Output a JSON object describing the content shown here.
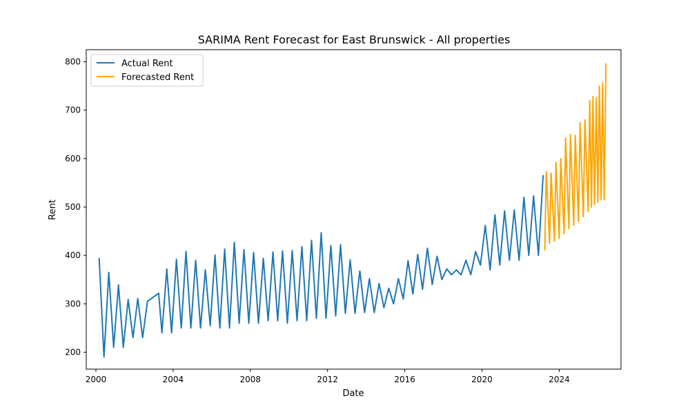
{
  "chart_data": {
    "type": "line",
    "title": "SARIMA Rent Forecast for East Brunswick - All properties",
    "xlabel": "Date",
    "ylabel": "Rent",
    "xlim": [
      1999.5,
      2027.2
    ],
    "ylim": [
      165,
      825
    ],
    "x_ticks": [
      2000,
      2004,
      2008,
      2012,
      2016,
      2020,
      2024
    ],
    "y_ticks": [
      200,
      300,
      400,
      500,
      600,
      700,
      800
    ],
    "grid": false,
    "legend_position": "upper-left",
    "series": [
      {
        "name": "Actual Rent",
        "color": "#1f77b4",
        "points": [
          [
            2000.17,
            395
          ],
          [
            2000.42,
            190
          ],
          [
            2000.67,
            365
          ],
          [
            2000.92,
            210
          ],
          [
            2001.17,
            339
          ],
          [
            2001.42,
            210
          ],
          [
            2001.67,
            309
          ],
          [
            2001.92,
            230
          ],
          [
            2002.17,
            311
          ],
          [
            2002.42,
            230
          ],
          [
            2002.67,
            305
          ],
          [
            2003.25,
            322
          ],
          [
            2003.42,
            240
          ],
          [
            2003.67,
            372
          ],
          [
            2003.92,
            240
          ],
          [
            2004.17,
            392
          ],
          [
            2004.42,
            250
          ],
          [
            2004.67,
            408
          ],
          [
            2004.92,
            250
          ],
          [
            2005.17,
            390
          ],
          [
            2005.42,
            250
          ],
          [
            2005.67,
            370
          ],
          [
            2005.92,
            255
          ],
          [
            2006.17,
            401
          ],
          [
            2006.42,
            250
          ],
          [
            2006.67,
            413
          ],
          [
            2006.92,
            250
          ],
          [
            2007.17,
            427
          ],
          [
            2007.42,
            260
          ],
          [
            2007.67,
            412
          ],
          [
            2007.92,
            260
          ],
          [
            2008.17,
            406
          ],
          [
            2008.42,
            260
          ],
          [
            2008.67,
            394
          ],
          [
            2008.92,
            265
          ],
          [
            2009.17,
            407
          ],
          [
            2009.42,
            265
          ],
          [
            2009.67,
            409
          ],
          [
            2009.92,
            260
          ],
          [
            2010.17,
            410
          ],
          [
            2010.42,
            265
          ],
          [
            2010.67,
            418
          ],
          [
            2010.92,
            265
          ],
          [
            2011.17,
            431
          ],
          [
            2011.42,
            270
          ],
          [
            2011.67,
            447
          ],
          [
            2011.92,
            270
          ],
          [
            2012.17,
            420
          ],
          [
            2012.42,
            275
          ],
          [
            2012.67,
            422
          ],
          [
            2012.92,
            280
          ],
          [
            2013.17,
            391
          ],
          [
            2013.42,
            280
          ],
          [
            2013.67,
            368
          ],
          [
            2013.92,
            282
          ],
          [
            2014.17,
            352
          ],
          [
            2014.42,
            282
          ],
          [
            2014.67,
            342
          ],
          [
            2014.92,
            292
          ],
          [
            2015.17,
            332
          ],
          [
            2015.42,
            300
          ],
          [
            2015.67,
            352
          ],
          [
            2015.92,
            310
          ],
          [
            2016.17,
            389
          ],
          [
            2016.42,
            320
          ],
          [
            2016.67,
            402
          ],
          [
            2016.92,
            330
          ],
          [
            2017.17,
            415
          ],
          [
            2017.42,
            340
          ],
          [
            2017.67,
            398
          ],
          [
            2017.92,
            350
          ],
          [
            2018.17,
            372
          ],
          [
            2018.42,
            360
          ],
          [
            2018.67,
            370
          ],
          [
            2018.92,
            360
          ],
          [
            2019.17,
            390
          ],
          [
            2019.42,
            360
          ],
          [
            2019.67,
            408
          ],
          [
            2019.92,
            380
          ],
          [
            2020.17,
            462
          ],
          [
            2020.42,
            370
          ],
          [
            2020.67,
            484
          ],
          [
            2020.92,
            380
          ],
          [
            2021.17,
            492
          ],
          [
            2021.42,
            390
          ],
          [
            2021.67,
            494
          ],
          [
            2021.92,
            390
          ],
          [
            2022.17,
            520
          ],
          [
            2022.42,
            400
          ],
          [
            2022.67,
            523
          ],
          [
            2022.92,
            400
          ],
          [
            2023.17,
            566
          ]
        ]
      },
      {
        "name": "Forecasted Rent",
        "color": "#ffa500",
        "points": [
          [
            2023.25,
            410
          ],
          [
            2023.33,
            573
          ],
          [
            2023.5,
            425
          ],
          [
            2023.58,
            570
          ],
          [
            2023.75,
            430
          ],
          [
            2023.83,
            592
          ],
          [
            2024.0,
            435
          ],
          [
            2024.08,
            600
          ],
          [
            2024.25,
            445
          ],
          [
            2024.33,
            642
          ],
          [
            2024.5,
            455
          ],
          [
            2024.58,
            650
          ],
          [
            2024.75,
            462
          ],
          [
            2024.83,
            648
          ],
          [
            2025.0,
            470
          ],
          [
            2025.08,
            674
          ],
          [
            2025.25,
            480
          ],
          [
            2025.33,
            680
          ],
          [
            2025.5,
            490
          ],
          [
            2025.58,
            720
          ],
          [
            2025.67,
            500
          ],
          [
            2025.75,
            728
          ],
          [
            2025.83,
            505
          ],
          [
            2025.92,
            726
          ],
          [
            2026.0,
            510
          ],
          [
            2026.08,
            750
          ],
          [
            2026.17,
            515
          ],
          [
            2026.25,
            756
          ],
          [
            2026.33,
            515
          ],
          [
            2026.42,
            797
          ]
        ]
      }
    ]
  }
}
